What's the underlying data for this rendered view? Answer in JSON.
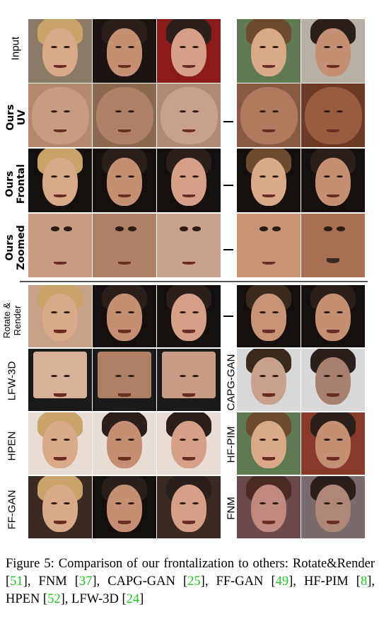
{
  "top_rows": [
    {
      "label": "Input",
      "bold": false
    },
    {
      "label": "Ours UV",
      "bold": true,
      "lines": [
        "Ours",
        "UV"
      ]
    },
    {
      "label": "Ours Frontal",
      "bold": true,
      "lines": [
        "Ours",
        "Frontal"
      ]
    },
    {
      "label": "Ours Zoomed",
      "bold": true,
      "lines": [
        "Ours",
        "Zoomed"
      ]
    }
  ],
  "bottom_left_rows": [
    {
      "label": "Rotate & Render",
      "lines": [
        "Rotate &",
        "Render"
      ]
    },
    {
      "label": "LFW-3D"
    },
    {
      "label": "HPEN"
    },
    {
      "label": "FF-GAN"
    }
  ],
  "bottom_right_rows": [
    {
      "label": "CAPG-GAN"
    },
    {
      "label": "HF-PIM"
    },
    {
      "label": "FNM"
    }
  ],
  "caption": {
    "prefix": "Figure 5:  Comparison of our frontalization to others: Rotate&Render ",
    "segments": [
      {
        "text": "Figure 5:  Comparison of our frontalization to others: Rotate&Render [",
        "ref": false
      },
      {
        "text": "51",
        "ref": true
      },
      {
        "text": "], FNM [",
        "ref": false
      },
      {
        "text": "37",
        "ref": true
      },
      {
        "text": "], CAPG-GAN [",
        "ref": false
      },
      {
        "text": "25",
        "ref": true
      },
      {
        "text": "], FF-GAN [",
        "ref": false
      },
      {
        "text": "49",
        "ref": true
      },
      {
        "text": "], HF-PIM [",
        "ref": false
      },
      {
        "text": "8",
        "ref": true
      },
      {
        "text": "], HPEN [",
        "ref": false
      },
      {
        "text": "52",
        "ref": true
      },
      {
        "text": "], LFW-3D [",
        "ref": false
      },
      {
        "text": "24",
        "ref": true
      },
      {
        "text": "]",
        "ref": false
      }
    ]
  },
  "colors": {
    "reference_green": "#22c422",
    "skin_light": "#d9a98a",
    "skin_mid": "#c48f72",
    "skin_dark": "#a86f55",
    "hair_blonde": "#c9a46a",
    "hair_dark": "#2a1f1a",
    "bg_dark": "#15100e"
  }
}
